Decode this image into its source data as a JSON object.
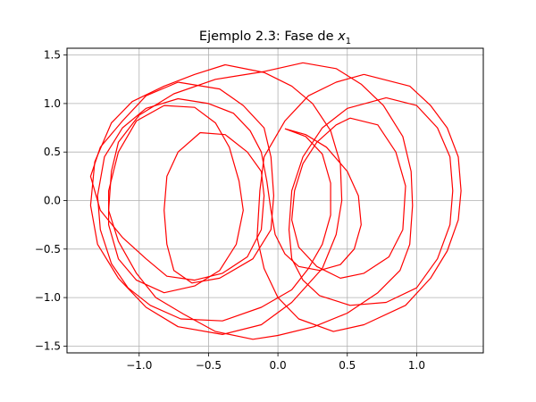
{
  "chart_data": {
    "type": "line",
    "title_prefix": "Ejemplo 2.3: Fase de ",
    "title_var": "x",
    "title_sub": "1",
    "xlabel": "",
    "ylabel": "",
    "xlim": [
      -1.52,
      1.48
    ],
    "ylim": [
      -1.57,
      1.57
    ],
    "grid": true,
    "color": "#ff0000",
    "xticks": [
      -1.0,
      -0.5,
      0.0,
      0.5,
      1.0
    ],
    "xtick_labels": [
      "−1.0",
      "−0.5",
      "0.0",
      "0.5",
      "1.0"
    ],
    "yticks": [
      -1.5,
      -1.0,
      -0.5,
      0.0,
      0.5,
      1.0,
      1.5
    ],
    "ytick_labels": [
      "−1.5",
      "−1.0",
      "−0.5",
      "0.0",
      "0.5",
      "1.0",
      "1.5"
    ],
    "series": [
      {
        "values": [
          [
            0.18,
            1.42
          ],
          [
            0.42,
            1.36
          ],
          [
            0.6,
            1.2
          ],
          [
            0.76,
            0.98
          ],
          [
            0.9,
            0.66
          ],
          [
            0.96,
            0.3
          ],
          [
            0.97,
            -0.05
          ],
          [
            0.95,
            -0.45
          ],
          [
            0.88,
            -0.72
          ],
          [
            0.72,
            -0.95
          ],
          [
            0.5,
            -1.16
          ],
          [
            0.26,
            -1.3
          ],
          [
            0.0,
            -1.39
          ],
          [
            -0.18,
            -1.43
          ],
          [
            -0.45,
            -1.35
          ],
          [
            -0.68,
            -1.17
          ],
          [
            -0.88,
            -1.0
          ],
          [
            -1.02,
            -0.75
          ],
          [
            -1.15,
            -0.42
          ],
          [
            -1.22,
            -0.1
          ],
          [
            -1.2,
            0.3
          ],
          [
            -1.15,
            0.6
          ],
          [
            -1.0,
            0.88
          ],
          [
            -0.75,
            1.1
          ],
          [
            -0.45,
            1.25
          ],
          [
            -0.1,
            1.33
          ],
          [
            0.18,
            1.42
          ]
        ]
      },
      {
        "values": [
          [
            -0.72,
            1.22
          ],
          [
            -0.42,
            1.15
          ],
          [
            -0.25,
            0.98
          ],
          [
            -0.1,
            0.75
          ],
          [
            -0.05,
            0.45
          ],
          [
            -0.03,
            0.05
          ],
          [
            -0.05,
            -0.3
          ],
          [
            -0.18,
            -0.6
          ],
          [
            -0.42,
            -0.8
          ],
          [
            -0.62,
            -0.85
          ],
          [
            -0.75,
            -0.72
          ],
          [
            -0.8,
            -0.45
          ],
          [
            -0.82,
            -0.1
          ],
          [
            -0.8,
            0.25
          ],
          [
            -0.72,
            0.5
          ],
          [
            -0.56,
            0.7
          ],
          [
            -0.38,
            0.68
          ],
          [
            -0.22,
            0.5
          ],
          [
            -0.12,
            0.3
          ],
          [
            -0.1,
            0.05
          ],
          [
            -0.12,
            -0.3
          ],
          [
            -0.22,
            -0.58
          ],
          [
            -0.4,
            -0.75
          ],
          [
            -0.6,
            -0.82
          ],
          [
            -0.8,
            -0.78
          ],
          [
            -0.95,
            -0.6
          ],
          [
            -1.12,
            -0.38
          ],
          [
            -1.28,
            -0.1
          ],
          [
            -1.35,
            0.25
          ],
          [
            -1.28,
            0.55
          ],
          [
            -1.12,
            0.82
          ],
          [
            -0.95,
            1.08
          ],
          [
            -0.72,
            1.22
          ]
        ]
      },
      {
        "values": [
          [
            0.62,
            1.3
          ],
          [
            0.95,
            1.18
          ],
          [
            1.1,
            0.98
          ],
          [
            1.22,
            0.75
          ],
          [
            1.3,
            0.45
          ],
          [
            1.32,
            0.1
          ],
          [
            1.3,
            -0.2
          ],
          [
            1.22,
            -0.52
          ],
          [
            1.1,
            -0.8
          ],
          [
            0.92,
            -1.08
          ],
          [
            0.62,
            -1.28
          ],
          [
            0.4,
            -1.35
          ],
          [
            0.15,
            -1.22
          ],
          [
            0.0,
            -1.0
          ],
          [
            -0.1,
            -0.7
          ],
          [
            -0.15,
            -0.38
          ],
          [
            -0.13,
            0.1
          ],
          [
            -0.1,
            0.45
          ],
          [
            0.05,
            0.82
          ],
          [
            0.22,
            1.08
          ],
          [
            0.42,
            1.22
          ],
          [
            0.62,
            1.3
          ]
        ]
      },
      {
        "values": [
          [
            0.52,
            0.85
          ],
          [
            0.72,
            0.78
          ],
          [
            0.85,
            0.5
          ],
          [
            0.92,
            0.15
          ],
          [
            0.9,
            -0.3
          ],
          [
            0.8,
            -0.58
          ],
          [
            0.62,
            -0.75
          ],
          [
            0.45,
            -0.8
          ],
          [
            0.28,
            -0.68
          ],
          [
            0.15,
            -0.48
          ],
          [
            0.1,
            -0.2
          ],
          [
            0.12,
            0.1
          ],
          [
            0.18,
            0.38
          ],
          [
            0.28,
            0.6
          ],
          [
            0.42,
            0.78
          ],
          [
            0.52,
            0.85
          ]
        ]
      },
      {
        "values": [
          [
            0.78,
            1.06
          ],
          [
            1.0,
            0.98
          ],
          [
            1.15,
            0.75
          ],
          [
            1.24,
            0.45
          ],
          [
            1.26,
            0.1
          ],
          [
            1.24,
            -0.25
          ],
          [
            1.15,
            -0.6
          ],
          [
            1.0,
            -0.9
          ],
          [
            0.78,
            -1.05
          ],
          [
            0.52,
            -1.08
          ],
          [
            0.3,
            -0.98
          ],
          [
            0.18,
            -0.82
          ],
          [
            0.1,
            -0.6
          ],
          [
            0.08,
            -0.3
          ],
          [
            0.1,
            0.1
          ],
          [
            0.18,
            0.45
          ],
          [
            0.32,
            0.75
          ],
          [
            0.5,
            0.95
          ],
          [
            0.78,
            1.06
          ]
        ]
      },
      {
        "values": [
          [
            -0.38,
            1.4
          ],
          [
            -0.1,
            1.32
          ],
          [
            0.1,
            1.18
          ],
          [
            0.25,
            1.0
          ],
          [
            0.38,
            0.72
          ],
          [
            0.45,
            0.38
          ],
          [
            0.46,
            0.0
          ],
          [
            0.42,
            -0.35
          ],
          [
            0.32,
            -0.7
          ],
          [
            0.1,
            -1.05
          ],
          [
            -0.12,
            -1.28
          ],
          [
            -0.4,
            -1.38
          ],
          [
            -0.72,
            -1.3
          ],
          [
            -0.95,
            -1.1
          ],
          [
            -1.15,
            -0.8
          ],
          [
            -1.3,
            -0.45
          ],
          [
            -1.35,
            -0.05
          ],
          [
            -1.32,
            0.4
          ],
          [
            -1.2,
            0.8
          ],
          [
            -1.05,
            1.02
          ],
          [
            -0.82,
            1.18
          ],
          [
            -0.6,
            1.3
          ],
          [
            -0.38,
            1.4
          ]
        ]
      },
      {
        "values": [
          [
            -0.82,
            0.98
          ],
          [
            -0.6,
            0.96
          ],
          [
            -0.45,
            0.8
          ],
          [
            -0.35,
            0.55
          ],
          [
            -0.28,
            0.2
          ],
          [
            -0.25,
            -0.1
          ],
          [
            -0.3,
            -0.45
          ],
          [
            -0.42,
            -0.72
          ],
          [
            -0.6,
            -0.88
          ],
          [
            -0.82,
            -0.95
          ],
          [
            -1.02,
            -0.82
          ],
          [
            -1.15,
            -0.6
          ],
          [
            -1.22,
            -0.25
          ],
          [
            -1.22,
            0.1
          ],
          [
            -1.15,
            0.5
          ],
          [
            -1.02,
            0.82
          ],
          [
            -0.82,
            0.98
          ]
        ]
      },
      {
        "values": [
          [
            0.05,
            0.74
          ],
          [
            0.2,
            0.66
          ],
          [
            0.32,
            0.48
          ],
          [
            0.38,
            0.18
          ],
          [
            0.38,
            -0.15
          ],
          [
            0.32,
            -0.45
          ],
          [
            0.22,
            -0.7
          ],
          [
            0.1,
            -0.92
          ],
          [
            -0.12,
            -1.1
          ],
          [
            -0.4,
            -1.24
          ],
          [
            -0.7,
            -1.22
          ],
          [
            -0.92,
            -1.08
          ],
          [
            -1.08,
            -0.9
          ],
          [
            -1.2,
            -0.65
          ],
          [
            -1.28,
            -0.3
          ],
          [
            -1.3,
            0.05
          ],
          [
            -1.25,
            0.45
          ],
          [
            -1.12,
            0.75
          ],
          [
            -0.95,
            0.95
          ],
          [
            -0.72,
            1.05
          ],
          [
            -0.5,
            1.0
          ],
          [
            -0.32,
            0.9
          ],
          [
            -0.2,
            0.72
          ],
          [
            -0.12,
            0.5
          ],
          [
            -0.08,
            0.2
          ],
          [
            -0.05,
            -0.1
          ],
          [
            -0.02,
            -0.35
          ],
          [
            0.05,
            -0.55
          ],
          [
            0.15,
            -0.68
          ],
          [
            0.3,
            -0.72
          ],
          [
            0.45,
            -0.66
          ],
          [
            0.55,
            -0.5
          ],
          [
            0.6,
            -0.25
          ],
          [
            0.58,
            0.05
          ],
          [
            0.5,
            0.3
          ],
          [
            0.35,
            0.55
          ],
          [
            0.2,
            0.68
          ],
          [
            0.05,
            0.74
          ]
        ]
      }
    ]
  }
}
